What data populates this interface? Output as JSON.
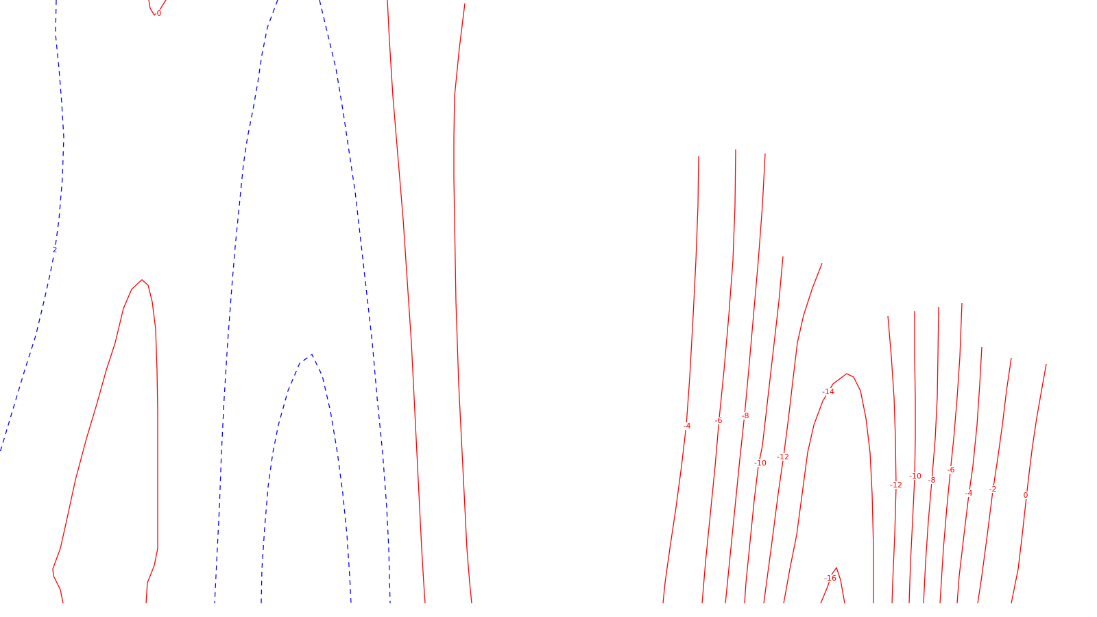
{
  "chart_data": {
    "type": "contour",
    "title": "",
    "xlabel": "",
    "ylabel": "",
    "grid": false,
    "legend": "none",
    "colors": {
      "positive": "#ff0000",
      "negative": "#0000ff"
    },
    "levels": [
      {
        "name": "level-0-top",
        "label": "0",
        "color": "#ff0000",
        "dashed": false
      },
      {
        "name": "level-2-left",
        "label": "2",
        "color": "#0000ff",
        "dashed": true
      },
      {
        "name": "level-dashed-center-left",
        "label": "",
        "color": "#0000ff",
        "dashed": true
      },
      {
        "name": "level-dashed-center-right",
        "label": "",
        "color": "#0000ff",
        "dashed": true
      },
      {
        "name": "level-dashed-inner-loop",
        "label": "",
        "color": "#0000ff",
        "dashed": true
      },
      {
        "name": "level-solid-left-loop",
        "label": "",
        "color": "#ff0000",
        "dashed": false
      },
      {
        "name": "level-solid-middle-a",
        "label": "",
        "color": "#ff0000",
        "dashed": false
      },
      {
        "name": "level-solid-middle-b",
        "label": "",
        "color": "#ff0000",
        "dashed": false
      },
      {
        "name": "level-minus-4-left",
        "label": "-4",
        "color": "#ff0000",
        "dashed": false
      },
      {
        "name": "level-minus-6-left",
        "label": "-6",
        "color": "#ff0000",
        "dashed": false
      },
      {
        "name": "level-minus-8-left",
        "label": "-8",
        "color": "#ff0000",
        "dashed": false
      },
      {
        "name": "level-minus-10-left",
        "label": "-10",
        "color": "#ff0000",
        "dashed": false
      },
      {
        "name": "level-minus-12-left",
        "label": "-12",
        "color": "#ff0000",
        "dashed": false
      },
      {
        "name": "level-minus-14",
        "label": "-14",
        "color": "#ff0000",
        "dashed": false
      },
      {
        "name": "level-minus-16",
        "label": "-16",
        "color": "#ff0000",
        "dashed": false
      },
      {
        "name": "level-minus-12-right",
        "label": "-12",
        "color": "#ff0000",
        "dashed": false
      },
      {
        "name": "level-minus-10-right",
        "label": "-10",
        "color": "#ff0000",
        "dashed": false
      },
      {
        "name": "level-minus-8-right",
        "label": "-8",
        "color": "#ff0000",
        "dashed": false
      },
      {
        "name": "level-minus-6-right",
        "label": "-6",
        "color": "#ff0000",
        "dashed": false
      },
      {
        "name": "level-minus-4-right",
        "label": "-4",
        "color": "#ff0000",
        "dashed": false
      },
      {
        "name": "level-minus-2-right",
        "label": "-2",
        "color": "#ff0000",
        "dashed": false
      },
      {
        "name": "level-0-right",
        "label": "0",
        "color": "#ff0000",
        "dashed": false
      }
    ]
  }
}
